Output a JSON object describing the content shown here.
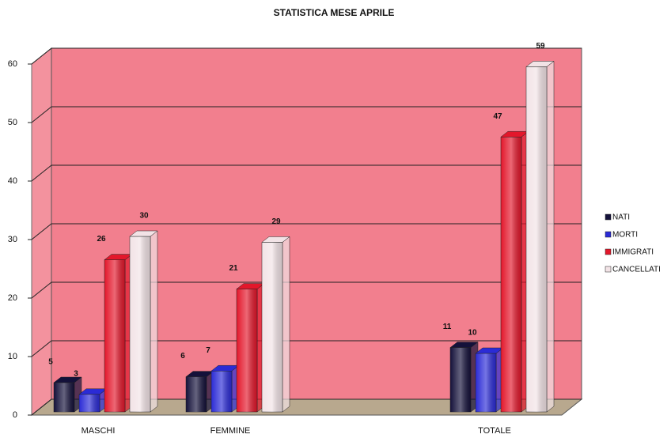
{
  "chart_data": {
    "type": "bar3d",
    "title": "STATISTICA MESE APRILE",
    "categories": [
      "MASCHI",
      "FEMMINE",
      null,
      "TOTALE"
    ],
    "series": [
      {
        "name": "NATI",
        "color": "#14113a",
        "values": [
          5,
          6,
          null,
          11
        ]
      },
      {
        "name": "MORTI",
        "color": "#2b2bd6",
        "values": [
          3,
          7,
          null,
          10
        ]
      },
      {
        "name": "IMMIGRATI",
        "color": "#e3172b",
        "values": [
          26,
          21,
          null,
          47
        ]
      },
      {
        "name": "CANCELLATI",
        "color": "#f2e3e6",
        "values": [
          30,
          29,
          null,
          59
        ]
      }
    ],
    "ylim": [
      0,
      60
    ],
    "yticks": [
      0,
      10,
      20,
      30,
      40,
      50,
      60
    ],
    "grid": true,
    "wall_color": "#f27f8e",
    "floor_color": "#b8a88e",
    "legend": "right"
  }
}
